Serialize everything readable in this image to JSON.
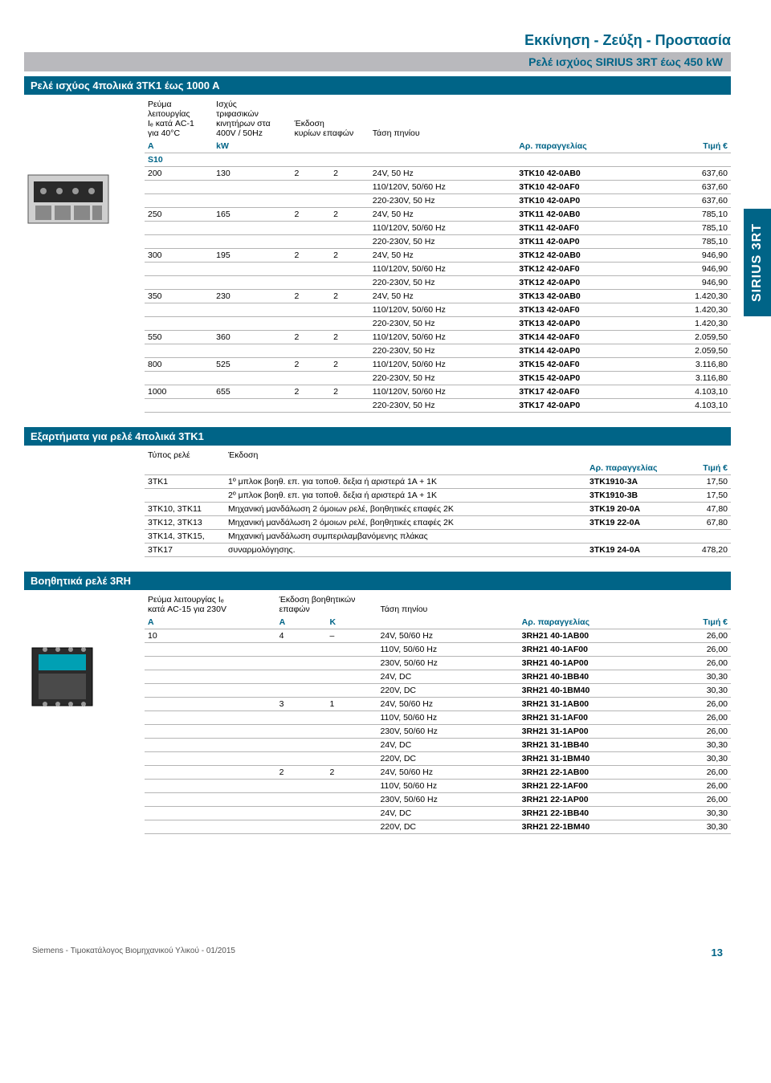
{
  "sideTab": "SIRIUS 3RT",
  "header": {
    "title": "Εκκίνηση - Ζεύξη - Προστασία",
    "subtitle": "Ρελέ ισχύος SIRIUS 3RT έως 450 kW"
  },
  "section1": {
    "bar": "Ρελέ ισχύος 4πολικά 3ΤΚ1 έως 1000 Α",
    "headers": {
      "c1a": "Ρεύμα",
      "c1b": "λειτουργίας",
      "c1c": "Iₑ κατά AC-1",
      "c1d": "για 40°C",
      "c2a": "Ισχύς",
      "c2b": "τριφασικών",
      "c2c": "κινητήρων στα",
      "c2d": "400V / 50Hz",
      "c3a": "Έκδοση",
      "c3b": "κυρίων επαφών",
      "c5": "Τάση πηνίου",
      "u1": "A",
      "u2": "kW",
      "order": "Αρ. παραγγελίας",
      "price": "Τιμή €",
      "s10": "S10"
    },
    "rows": [
      {
        "a": "200",
        "kw": "130",
        "e1": "2",
        "e2": "2",
        "v": "24V, 50 Hz",
        "ord": "3TK10 42-0AB0",
        "pr": "637,60"
      },
      {
        "a": "",
        "kw": "",
        "e1": "",
        "e2": "",
        "v": "110/120V, 50/60 Hz",
        "ord": "3TK10 42-0AF0",
        "pr": "637,60"
      },
      {
        "a": "",
        "kw": "",
        "e1": "",
        "e2": "",
        "v": "220-230V, 50 Hz",
        "ord": "3TK10 42-0AP0",
        "pr": "637,60"
      },
      {
        "a": "250",
        "kw": "165",
        "e1": "2",
        "e2": "2",
        "v": "24V, 50 Hz",
        "ord": "3TK11 42-0AB0",
        "pr": "785,10"
      },
      {
        "a": "",
        "kw": "",
        "e1": "",
        "e2": "",
        "v": "110/120V, 50/60 Hz",
        "ord": "3TK11 42-0AF0",
        "pr": "785,10"
      },
      {
        "a": "",
        "kw": "",
        "e1": "",
        "e2": "",
        "v": "220-230V, 50 Hz",
        "ord": "3TK11 42-0AP0",
        "pr": "785,10"
      },
      {
        "a": "300",
        "kw": "195",
        "e1": "2",
        "e2": "2",
        "v": "24V, 50 Hz",
        "ord": "3TK12 42-0AB0",
        "pr": "946,90"
      },
      {
        "a": "",
        "kw": "",
        "e1": "",
        "e2": "",
        "v": "110/120V, 50/60 Hz",
        "ord": "3TK12 42-0AF0",
        "pr": "946,90"
      },
      {
        "a": "",
        "kw": "",
        "e1": "",
        "e2": "",
        "v": "220-230V, 50 Hz",
        "ord": "3TK12 42-0AP0",
        "pr": "946,90"
      },
      {
        "a": "350",
        "kw": "230",
        "e1": "2",
        "e2": "2",
        "v": "24V, 50 Hz",
        "ord": "3TK13 42-0AB0",
        "pr": "1.420,30"
      },
      {
        "a": "",
        "kw": "",
        "e1": "",
        "e2": "",
        "v": "110/120V, 50/60 Hz",
        "ord": "3TK13 42-0AF0",
        "pr": "1.420,30"
      },
      {
        "a": "",
        "kw": "",
        "e1": "",
        "e2": "",
        "v": "220-230V, 50 Hz",
        "ord": "3TK13 42-0AP0",
        "pr": "1.420,30"
      },
      {
        "a": "550",
        "kw": "360",
        "e1": "2",
        "e2": "2",
        "v": "110/120V, 50/60 Hz",
        "ord": "3TK14 42-0AF0",
        "pr": "2.059,50"
      },
      {
        "a": "",
        "kw": "",
        "e1": "",
        "e2": "",
        "v": "220-230V, 50 Hz",
        "ord": "3TK14 42-0AP0",
        "pr": "2.059,50"
      },
      {
        "a": "800",
        "kw": "525",
        "e1": "2",
        "e2": "2",
        "v": "110/120V, 50/60 Hz",
        "ord": "3TK15 42-0AF0",
        "pr": "3.116,80"
      },
      {
        "a": "",
        "kw": "",
        "e1": "",
        "e2": "",
        "v": "220-230V, 50 Hz",
        "ord": "3TK15 42-0AP0",
        "pr": "3.116,80"
      },
      {
        "a": "1000",
        "kw": "655",
        "e1": "2",
        "e2": "2",
        "v": "110/120V, 50/60 Hz",
        "ord": "3TK17 42-0AF0",
        "pr": "4.103,10"
      },
      {
        "a": "",
        "kw": "",
        "e1": "",
        "e2": "",
        "v": "220-230V, 50 Hz",
        "ord": "3TK17 42-0AP0",
        "pr": "4.103,10"
      }
    ]
  },
  "section2": {
    "bar": "Εξαρτήματα για ρελέ 4πολικά 3ΤΚ1",
    "headers": {
      "c1": "Τύπος ρελέ",
      "c2": "Έκδοση",
      "order": "Αρ. παραγγελίας",
      "price": "Τιμή €"
    },
    "rows": [
      {
        "t": "3TK1",
        "d": "1º μπλοκ βοηθ. επ. για τοποθ. δεξια ή αριστερά  1A + 1K",
        "ord": "3TK1910-3A",
        "pr": "17,50"
      },
      {
        "t": "",
        "d": "2º μπλοκ βοηθ. επ. για τοποθ. δεξια ή αριστερά  1A + 1K",
        "ord": "3TK1910-3B",
        "pr": "17,50"
      },
      {
        "t": "3TK10, 3TK11",
        "d": "Μηχανική μανδάλωση 2 όμοιων ρελέ, βοηθητικές επαφές 2Κ",
        "ord": "3TK19 20-0A",
        "pr": "47,80"
      },
      {
        "t": "3TK12, 3TK13",
        "d": "Μηχανική μανδάλωση 2 όμοιων ρελέ, βοηθητικές επαφές 2Κ",
        "ord": "3TK19 22-0A",
        "pr": "67,80"
      },
      {
        "t": "3TK14, 3TK15,",
        "d": "Μηχανική μανδάλωση συμπεριλαμβανόμενης πλάκας",
        "ord": "",
        "pr": ""
      },
      {
        "t": "3TK17",
        "d": "συναρμολόγησης.",
        "ord": "3TK19 24-0A",
        "pr": "478,20"
      }
    ]
  },
  "section3": {
    "bar": "Βοηθητικά ρελέ  3RH",
    "headers": {
      "c1a": "Ρεύμα λειτουργίας Iₑ",
      "c1b": "κατά AC-15 για 230V",
      "c2a": "Έκδοση βοηθητικών",
      "c2b": "επαφών",
      "c3": "Τάση πηνίου",
      "u1": "A",
      "u2": "A",
      "u3": "K",
      "order": "Αρ. παραγγελίας",
      "price": "Τιμή €"
    },
    "rows": [
      {
        "a": "10",
        "ea": "4",
        "ek": "–",
        "v": "24V, 50/60 Hz",
        "ord": "3RH21 40-1AB00",
        "pr": "26,00"
      },
      {
        "a": "",
        "ea": "",
        "ek": "",
        "v": "110V, 50/60 Hz",
        "ord": "3RH21 40-1AF00",
        "pr": "26,00"
      },
      {
        "a": "",
        "ea": "",
        "ek": "",
        "v": "230V, 50/60 Hz",
        "ord": "3RH21 40-1AP00",
        "pr": "26,00"
      },
      {
        "a": "",
        "ea": "",
        "ek": "",
        "v": "24V, DC",
        "ord": "3RH21 40-1BB40",
        "pr": "30,30"
      },
      {
        "a": "",
        "ea": "",
        "ek": "",
        "v": "220V, DC",
        "ord": "3RH21 40-1BM40",
        "pr": "30,30"
      },
      {
        "a": "",
        "ea": "3",
        "ek": "1",
        "v": "24V, 50/60 Hz",
        "ord": "3RH21 31-1AB00",
        "pr": "26,00"
      },
      {
        "a": "",
        "ea": "",
        "ek": "",
        "v": "110V, 50/60 Hz",
        "ord": "3RH21 31-1AF00",
        "pr": "26,00"
      },
      {
        "a": "",
        "ea": "",
        "ek": "",
        "v": "230V, 50/60 Hz",
        "ord": "3RH21 31-1AP00",
        "pr": "26,00"
      },
      {
        "a": "",
        "ea": "",
        "ek": "",
        "v": "24V, DC",
        "ord": "3RH21 31-1BB40",
        "pr": "30,30"
      },
      {
        "a": "",
        "ea": "",
        "ek": "",
        "v": "220V, DC",
        "ord": "3RH21 31-1BM40",
        "pr": "30,30"
      },
      {
        "a": "",
        "ea": "2",
        "ek": "2",
        "v": "24V, 50/60 Hz",
        "ord": "3RH21 22-1AB00",
        "pr": "26,00"
      },
      {
        "a": "",
        "ea": "",
        "ek": "",
        "v": "110V, 50/60 Hz",
        "ord": "3RH21 22-1AF00",
        "pr": "26,00"
      },
      {
        "a": "",
        "ea": "",
        "ek": "",
        "v": "230V, 50/60 Hz",
        "ord": "3RH21 22-1AP00",
        "pr": "26,00"
      },
      {
        "a": "",
        "ea": "",
        "ek": "",
        "v": "24V, DC",
        "ord": "3RH21 22-1BB40",
        "pr": "30,30"
      },
      {
        "a": "",
        "ea": "",
        "ek": "",
        "v": "220V, DC",
        "ord": "3RH21 22-1BM40",
        "pr": "30,30"
      }
    ]
  },
  "footer": {
    "left": "Siemens - Τιμοκατάλογος Βιομηχανικού Υλικού - 01/2015",
    "page": "13"
  }
}
